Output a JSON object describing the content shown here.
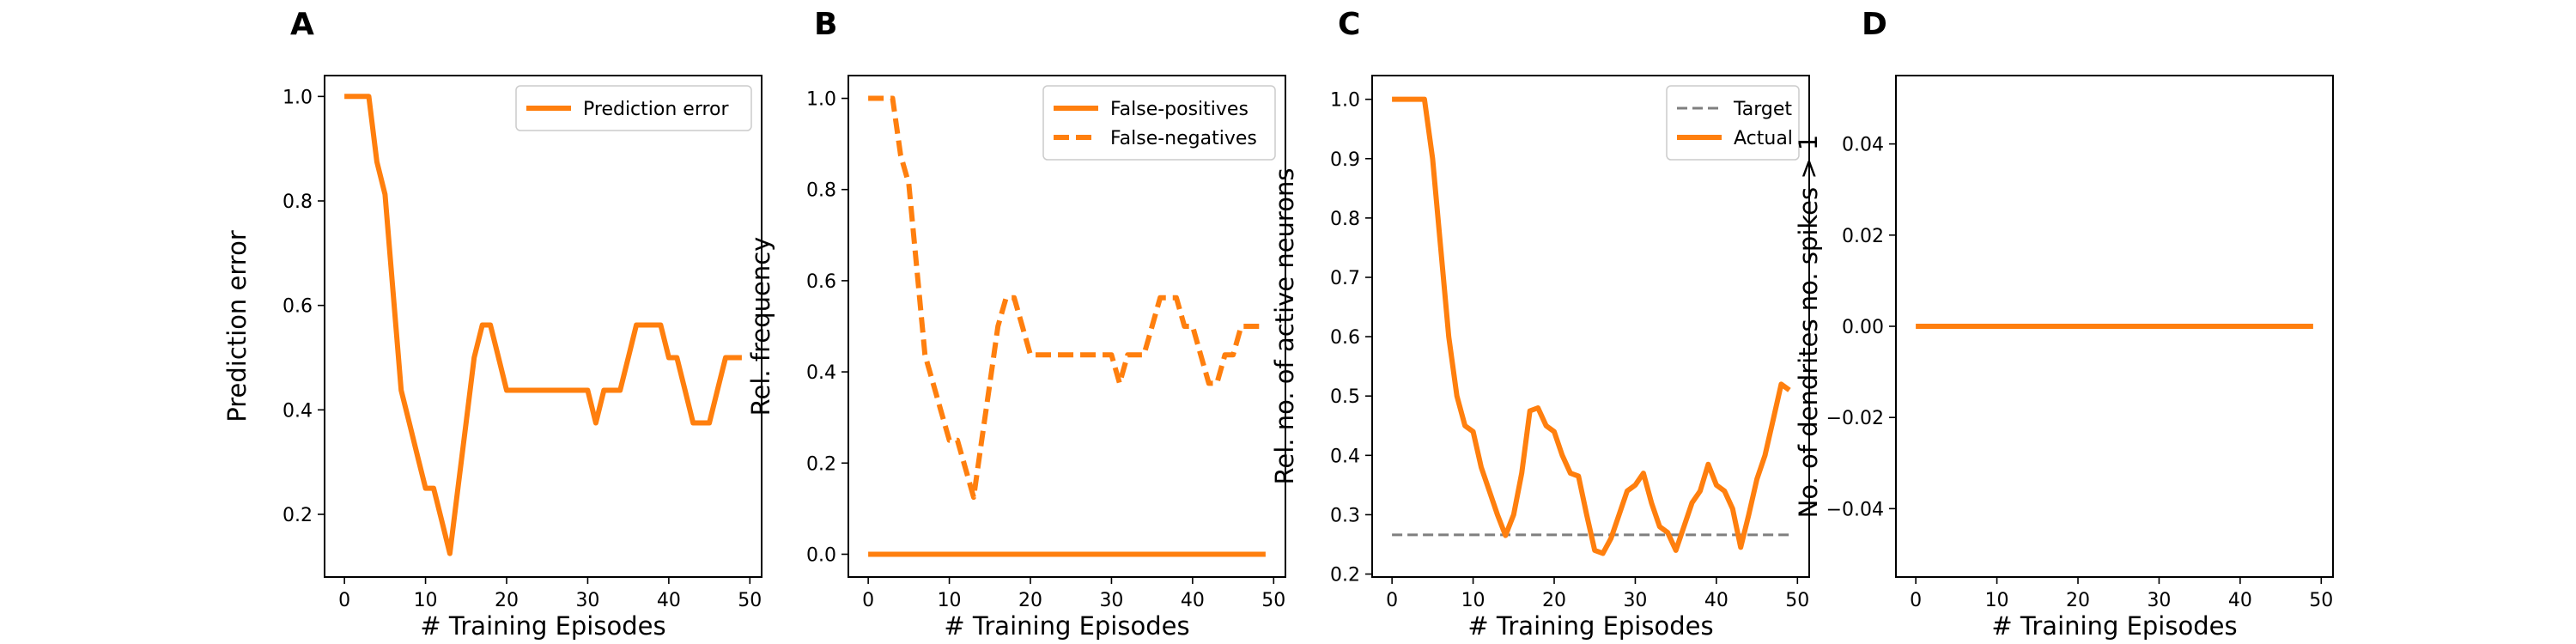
{
  "colors": {
    "series": "#ff7f0e",
    "target": "#7f7f7f",
    "axes": "#000000",
    "background": "#ffffff"
  },
  "chart_data": [
    {
      "panel": "A",
      "type": "line",
      "xlabel": "# Training Episodes",
      "ylabel": "Prediction error",
      "xlim": [
        -2.45,
        51.45
      ],
      "ylim": [
        0.08,
        1.04
      ],
      "xticks": [
        0,
        10,
        20,
        30,
        40,
        50
      ],
      "yticks": [
        0.2,
        0.4,
        0.6,
        0.8,
        1.0
      ],
      "ytick_labels": [
        "0.2",
        "0.4",
        "0.6",
        "0.8",
        "1.0"
      ],
      "legend": {
        "position": "top-right",
        "entries": [
          {
            "label": "Prediction error",
            "style": "solid"
          }
        ]
      },
      "series": [
        {
          "name": "Prediction error",
          "style": "solid",
          "x": [
            0,
            1,
            2,
            3,
            4,
            5,
            6,
            7,
            8,
            9,
            10,
            11,
            12,
            13,
            14,
            15,
            16,
            17,
            18,
            19,
            20,
            21,
            22,
            23,
            24,
            25,
            26,
            27,
            28,
            29,
            30,
            31,
            32,
            33,
            34,
            35,
            36,
            37,
            38,
            39,
            40,
            41,
            42,
            43,
            44,
            45,
            46,
            47,
            48,
            49
          ],
          "values": [
            1.0,
            1.0,
            1.0,
            1.0,
            0.875,
            0.8125,
            0.625,
            0.4375,
            0.375,
            0.3125,
            0.25,
            0.25,
            0.1875,
            0.125,
            0.25,
            0.375,
            0.5,
            0.5625,
            0.5625,
            0.5,
            0.4375,
            0.4375,
            0.4375,
            0.4375,
            0.4375,
            0.4375,
            0.4375,
            0.4375,
            0.4375,
            0.4375,
            0.4375,
            0.375,
            0.4375,
            0.4375,
            0.4375,
            0.5,
            0.5625,
            0.5625,
            0.5625,
            0.5625,
            0.5,
            0.5,
            0.4375,
            0.375,
            0.375,
            0.375,
            0.4375,
            0.5,
            0.5,
            0.5
          ]
        }
      ]
    },
    {
      "panel": "B",
      "type": "line",
      "xlabel": "# Training Episodes",
      "ylabel": "Rel. frequency",
      "xlim": [
        -2.45,
        51.45
      ],
      "ylim": [
        -0.05,
        1.05
      ],
      "xticks": [
        0,
        10,
        20,
        30,
        40,
        50
      ],
      "yticks": [
        0.0,
        0.2,
        0.4,
        0.6,
        0.8,
        1.0
      ],
      "ytick_labels": [
        "0.0",
        "0.2",
        "0.4",
        "0.6",
        "0.8",
        "1.0"
      ],
      "legend": {
        "position": "top-right",
        "entries": [
          {
            "label": "False-positives",
            "style": "solid"
          },
          {
            "label": "False-negatives",
            "style": "dashed"
          }
        ]
      },
      "series": [
        {
          "name": "False-positives",
          "style": "solid",
          "x": [
            0,
            1,
            2,
            3,
            4,
            5,
            6,
            7,
            8,
            9,
            10,
            11,
            12,
            13,
            14,
            15,
            16,
            17,
            18,
            19,
            20,
            21,
            22,
            23,
            24,
            25,
            26,
            27,
            28,
            29,
            30,
            31,
            32,
            33,
            34,
            35,
            36,
            37,
            38,
            39,
            40,
            41,
            42,
            43,
            44,
            45,
            46,
            47,
            48,
            49
          ],
          "values": [
            0,
            0,
            0,
            0,
            0,
            0,
            0,
            0,
            0,
            0,
            0,
            0,
            0,
            0,
            0,
            0,
            0,
            0,
            0,
            0,
            0,
            0,
            0,
            0,
            0,
            0,
            0,
            0,
            0,
            0,
            0,
            0,
            0,
            0,
            0,
            0,
            0,
            0,
            0,
            0,
            0,
            0,
            0,
            0,
            0,
            0,
            0,
            0,
            0,
            0
          ]
        },
        {
          "name": "False-negatives",
          "style": "dashed",
          "x": [
            0,
            1,
            2,
            3,
            4,
            5,
            6,
            7,
            8,
            9,
            10,
            11,
            12,
            13,
            14,
            15,
            16,
            17,
            18,
            19,
            20,
            21,
            22,
            23,
            24,
            25,
            26,
            27,
            28,
            29,
            30,
            31,
            32,
            33,
            34,
            35,
            36,
            37,
            38,
            39,
            40,
            41,
            42,
            43,
            44,
            45,
            46,
            47,
            48,
            49
          ],
          "values": [
            1.0,
            1.0,
            1.0,
            1.0,
            0.875,
            0.8125,
            0.625,
            0.4375,
            0.375,
            0.3125,
            0.25,
            0.25,
            0.1875,
            0.125,
            0.25,
            0.375,
            0.5,
            0.5625,
            0.5625,
            0.5,
            0.4375,
            0.4375,
            0.4375,
            0.4375,
            0.4375,
            0.4375,
            0.4375,
            0.4375,
            0.4375,
            0.4375,
            0.4375,
            0.375,
            0.4375,
            0.4375,
            0.4375,
            0.5,
            0.5625,
            0.5625,
            0.5625,
            0.5,
            0.5,
            0.4375,
            0.375,
            0.375,
            0.4375,
            0.4375,
            0.5,
            0.5,
            0.5,
            0.5
          ]
        }
      ]
    },
    {
      "panel": "C",
      "type": "line",
      "xlabel": "# Training Episodes",
      "ylabel": "Rel. no. of active neurons",
      "xlim": [
        -2.45,
        51.45
      ],
      "ylim": [
        0.195,
        1.04
      ],
      "xticks": [
        0,
        10,
        20,
        30,
        40,
        50
      ],
      "yticks": [
        0.2,
        0.3,
        0.4,
        0.5,
        0.6,
        0.7,
        0.8,
        0.9,
        1.0
      ],
      "ytick_labels": [
        "0.2",
        "0.3",
        "0.4",
        "0.5",
        "0.6",
        "0.7",
        "0.8",
        "0.9",
        "1.0"
      ],
      "legend": {
        "position": "top-right",
        "entries": [
          {
            "label": "Target",
            "style": "dashed-gray"
          },
          {
            "label": "Actual",
            "style": "solid"
          }
        ]
      },
      "series": [
        {
          "name": "Target",
          "style": "dashed-gray",
          "x": [
            0,
            49
          ],
          "values": [
            0.266,
            0.266
          ]
        },
        {
          "name": "Actual",
          "style": "solid",
          "x": [
            0,
            1,
            2,
            3,
            4,
            5,
            6,
            7,
            8,
            9,
            10,
            11,
            12,
            13,
            14,
            15,
            16,
            17,
            18,
            19,
            20,
            21,
            22,
            23,
            24,
            25,
            26,
            27,
            28,
            29,
            30,
            31,
            32,
            33,
            34,
            35,
            36,
            37,
            38,
            39,
            40,
            41,
            42,
            43,
            44,
            45,
            46,
            47,
            48,
            49
          ],
          "values": [
            1.0,
            1.0,
            1.0,
            1.0,
            1.0,
            0.9,
            0.75,
            0.6,
            0.5,
            0.45,
            0.44,
            0.38,
            0.34,
            0.3,
            0.265,
            0.3,
            0.37,
            0.475,
            0.48,
            0.45,
            0.44,
            0.4,
            0.37,
            0.365,
            0.3,
            0.24,
            0.235,
            0.26,
            0.3,
            0.34,
            0.35,
            0.37,
            0.32,
            0.28,
            0.27,
            0.24,
            0.28,
            0.32,
            0.34,
            0.385,
            0.35,
            0.34,
            0.31,
            0.245,
            0.3,
            0.36,
            0.4,
            0.46,
            0.52,
            0.51
          ]
        }
      ]
    },
    {
      "panel": "D",
      "type": "line",
      "xlabel": "# Training Episodes",
      "ylabel": "No. of dendrites no. spikes > 1",
      "xlim": [
        -2.45,
        51.45
      ],
      "ylim": [
        -0.055,
        0.055
      ],
      "xticks": [
        0,
        10,
        20,
        30,
        40,
        50
      ],
      "yticks": [
        -0.04,
        -0.02,
        0.0,
        0.02,
        0.04
      ],
      "ytick_labels": [
        "−0.04",
        "−0.02",
        "0.00",
        "0.02",
        "0.04"
      ],
      "series": [
        {
          "style": "solid",
          "x": [
            0,
            49
          ],
          "values": [
            0,
            0
          ]
        }
      ]
    }
  ]
}
